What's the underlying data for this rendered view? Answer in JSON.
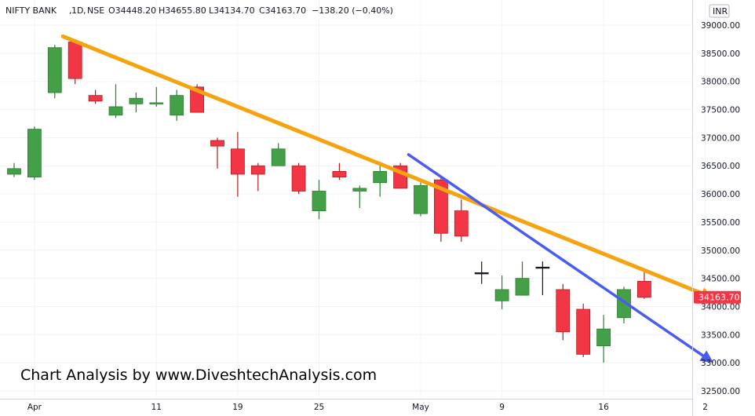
{
  "legend": {
    "symbol": "NIFTY BANK",
    "interval": "1D",
    "exchange": "NSE",
    "open": "O34448.20",
    "high": "H34655.80",
    "low": "L34134.70",
    "close": "C34163.70",
    "change": "−138.20 (−0.40%)"
  },
  "currency": "INR",
  "last_price_label": "34163.70",
  "watermark": "Chart Analysis by www.DiveshtechAnalysis.com",
  "colors": {
    "up": "#43a047",
    "down": "#f23645",
    "up_wick": "#2e7d32",
    "down_wick": "#b71c1c",
    "trendline_orange": "#f5a30f",
    "trendline_blue": "#4a5cf0",
    "grid": "#f0f3fa",
    "axis_text": "#131722"
  },
  "chart_data": {
    "type": "candlestick",
    "y_axis": {
      "range": [
        32400,
        39200
      ],
      "ticks": [
        "32500.00",
        "33000.00",
        "33500.00",
        "34000.00",
        "34500.00",
        "35000.00",
        "35500.00",
        "36000.00",
        "36500.00",
        "37000.00",
        "37500.00",
        "38000.00",
        "38500.00",
        "39000.00"
      ],
      "tick_values": [
        32500,
        33000,
        33500,
        34000,
        34500,
        35000,
        35500,
        36000,
        36500,
        37000,
        37500,
        38000,
        38500,
        39000
      ]
    },
    "x_axis": {
      "labels": [
        {
          "text": "Apr",
          "index": 1
        },
        {
          "text": "11",
          "index": 7
        },
        {
          "text": "19",
          "index": 11
        },
        {
          "text": "25",
          "index": 15
        },
        {
          "text": "May",
          "index": 20
        },
        {
          "text": "9",
          "index": 24
        },
        {
          "text": "16",
          "index": 29
        },
        {
          "text": "2",
          "index": 34
        }
      ]
    },
    "candles": [
      {
        "o": 36350,
        "h": 36550,
        "l": 36300,
        "c": 36450
      },
      {
        "o": 36300,
        "h": 37200,
        "l": 36250,
        "c": 37150
      },
      {
        "o": 37800,
        "h": 38650,
        "l": 37700,
        "c": 38600
      },
      {
        "o": 38700,
        "h": 38750,
        "l": 37950,
        "c": 38050
      },
      {
        "o": 37750,
        "h": 37850,
        "l": 37600,
        "c": 37650
      },
      {
        "o": 37400,
        "h": 37950,
        "l": 37350,
        "c": 37550
      },
      {
        "o": 37600,
        "h": 37800,
        "l": 37450,
        "c": 37700
      },
      {
        "o": 37600,
        "h": 37900,
        "l": 37550,
        "c": 37620
      },
      {
        "o": 37400,
        "h": 37850,
        "l": 37300,
        "c": 37750
      },
      {
        "o": 37900,
        "h": 37950,
        "l": 37450,
        "c": 37450
      },
      {
        "o": 36950,
        "h": 37000,
        "l": 36450,
        "c": 36850
      },
      {
        "o": 36800,
        "h": 37100,
        "l": 35950,
        "c": 36350
      },
      {
        "o": 36500,
        "h": 36550,
        "l": 36050,
        "c": 36350
      },
      {
        "o": 36500,
        "h": 36900,
        "l": 36500,
        "c": 36800
      },
      {
        "o": 36500,
        "h": 36550,
        "l": 36000,
        "c": 36050
      },
      {
        "o": 35700,
        "h": 36250,
        "l": 35550,
        "c": 36050
      },
      {
        "o": 36400,
        "h": 36550,
        "l": 36250,
        "c": 36300
      },
      {
        "o": 36050,
        "h": 36150,
        "l": 35750,
        "c": 36100
      },
      {
        "o": 36200,
        "h": 36550,
        "l": 35950,
        "c": 36400
      },
      {
        "o": 36500,
        "h": 36550,
        "l": 36100,
        "c": 36100
      },
      {
        "o": 35650,
        "h": 36200,
        "l": 35600,
        "c": 36150
      },
      {
        "o": 36250,
        "h": 36300,
        "l": 35150,
        "c": 35300
      },
      {
        "o": 35700,
        "h": 35900,
        "l": 35150,
        "c": 35250
      },
      {
        "o": 34600,
        "h": 34800,
        "l": 34400,
        "c": 34600
      },
      {
        "o": 34100,
        "h": 34550,
        "l": 33950,
        "c": 34300
      },
      {
        "o": 34200,
        "h": 34800,
        "l": 34200,
        "c": 34500
      },
      {
        "o": 34700,
        "h": 34800,
        "l": 34200,
        "c": 34700
      },
      {
        "o": 34300,
        "h": 34400,
        "l": 33400,
        "c": 33550
      },
      {
        "o": 33950,
        "h": 34050,
        "l": 33100,
        "c": 33150
      },
      {
        "o": 33300,
        "h": 33850,
        "l": 33000,
        "c": 33600
      },
      {
        "o": 33800,
        "h": 34350,
        "l": 33700,
        "c": 34300
      },
      {
        "o": 34448.2,
        "h": 34655.8,
        "l": 34134.7,
        "c": 34163.7
      }
    ],
    "trendlines": [
      {
        "name": "orange",
        "from": {
          "index": 2.4,
          "price": 38800
        },
        "to": {
          "index": 34.4,
          "price": 34150
        }
      },
      {
        "name": "blue",
        "from": {
          "index": 19.4,
          "price": 36700
        },
        "to": {
          "index": 34.4,
          "price": 33000
        }
      }
    ]
  }
}
